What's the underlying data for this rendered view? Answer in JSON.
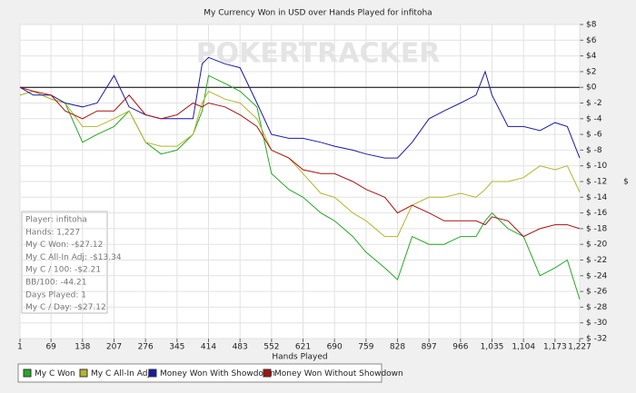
{
  "chart_data": {
    "type": "line",
    "title": "My Currency Won in USD over Hands Played for infitoha",
    "watermark": "POKERTRACKER",
    "x_label": "Hands Played",
    "y_label": "$",
    "x": [
      1,
      30,
      69,
      100,
      138,
      170,
      207,
      240,
      276,
      310,
      345,
      380,
      400,
      414,
      450,
      483,
      520,
      552,
      590,
      621,
      660,
      690,
      730,
      759,
      800,
      828,
      860,
      897,
      930,
      966,
      1000,
      1020,
      1035,
      1070,
      1104,
      1140,
      1173,
      1200,
      1227
    ],
    "series": [
      {
        "name": "My C Won",
        "color": "#22aa22",
        "values": [
          -1,
          -0.5,
          -1.5,
          -2,
          -7,
          -6,
          -5,
          -3,
          -7,
          -8.5,
          -8,
          -6,
          -3,
          1.5,
          0.5,
          -0.5,
          -2.5,
          -11,
          -13,
          -14,
          -16,
          -17,
          -19,
          -21,
          -23,
          -24.5,
          -19,
          -20,
          -20,
          -19,
          -19,
          -17,
          -16,
          -18,
          -19,
          -24,
          -23,
          -22,
          -27
        ]
      },
      {
        "name": "My C All-In Adj",
        "color": "#b5b52a",
        "values": [
          -1,
          -0.5,
          -1.5,
          -2,
          -5,
          -5,
          -4,
          -3,
          -7,
          -7.5,
          -7.5,
          -6,
          -2,
          -0.5,
          -1.5,
          -2,
          -4,
          -8,
          -9,
          -11,
          -13.5,
          -14,
          -16,
          -17,
          -19,
          -19,
          -15,
          -14,
          -14,
          -13.5,
          -14,
          -13,
          -12,
          -12,
          -11.5,
          -10,
          -10.5,
          -10,
          -13.34
        ]
      },
      {
        "name": "Money Won With Showdown",
        "color": "#1a1aaa",
        "values": [
          0,
          -1,
          -1,
          -2,
          -2.5,
          -2,
          1.5,
          -2.5,
          -3.5,
          -4,
          -4,
          -4,
          3,
          3.8,
          3,
          2.5,
          -2,
          -6,
          -6.5,
          -6.5,
          -7,
          -7.5,
          -8,
          -8.5,
          -9,
          -9,
          -7,
          -4,
          -3,
          -2,
          -1,
          2,
          -1,
          -5,
          -5,
          -5.5,
          -4.5,
          -5,
          -9
        ]
      },
      {
        "name": "Money Won Without Showdown",
        "color": "#aa1111",
        "values": [
          0,
          -0.5,
          -1,
          -3,
          -4,
          -3,
          -3,
          -1,
          -3.5,
          -4,
          -3.5,
          -2,
          -2.5,
          -2,
          -2.5,
          -3.5,
          -5,
          -8,
          -9,
          -10.5,
          -11,
          -11,
          -12,
          -13,
          -14,
          -16,
          -15,
          -16,
          -17,
          -17,
          -17,
          -17.5,
          -16.5,
          -17,
          -19,
          -18,
          -17.5,
          -17.5,
          -18
        ]
      }
    ],
    "xlim": [
      1,
      1227
    ],
    "xticks": [
      1,
      69,
      138,
      207,
      276,
      345,
      414,
      483,
      552,
      621,
      690,
      759,
      828,
      897,
      966,
      {
        "value": 1035,
        "label": "1,035"
      },
      {
        "value": 1104,
        "label": "1,104"
      },
      {
        "value": 1173,
        "label": "1,173"
      },
      {
        "value": 1227,
        "label": "1,227"
      }
    ],
    "ylim": [
      -32,
      8
    ],
    "yticks": [
      {
        "value": 8,
        "label": "$8"
      },
      {
        "value": 6,
        "label": "$6"
      },
      {
        "value": 4,
        "label": "$4"
      },
      {
        "value": 2,
        "label": "$2"
      },
      {
        "value": 0,
        "label": "$0"
      },
      {
        "value": -2,
        "label": "$ -2"
      },
      {
        "value": -4,
        "label": "$ -4"
      },
      {
        "value": -6,
        "label": "$ -6"
      },
      {
        "value": -8,
        "label": "$ -8"
      },
      {
        "value": -10,
        "label": "$ -10"
      },
      {
        "value": -12,
        "label": "$ -12"
      },
      {
        "value": -14,
        "label": "$ -14"
      },
      {
        "value": -16,
        "label": "$ -16"
      },
      {
        "value": -18,
        "label": "$ -18"
      },
      {
        "value": -20,
        "label": "$ -20"
      },
      {
        "value": -22,
        "label": "$ -22"
      },
      {
        "value": -24,
        "label": "$ -24"
      },
      {
        "value": -26,
        "label": "$ -26"
      },
      {
        "value": -28,
        "label": "$ -28"
      },
      {
        "value": -30,
        "label": "$ -30"
      },
      {
        "value": -32,
        "label": "$ -32"
      }
    ],
    "grid": true,
    "stats": [
      "Player: infitoha",
      "Hands: 1,227",
      "My C Won: -$27.12",
      "My C All-In Adj: -$13.34",
      "My C / 100: -$2.21",
      "BB/100: -44.21",
      "Days Played: 1",
      "My C / Day: -$27.12"
    ]
  }
}
